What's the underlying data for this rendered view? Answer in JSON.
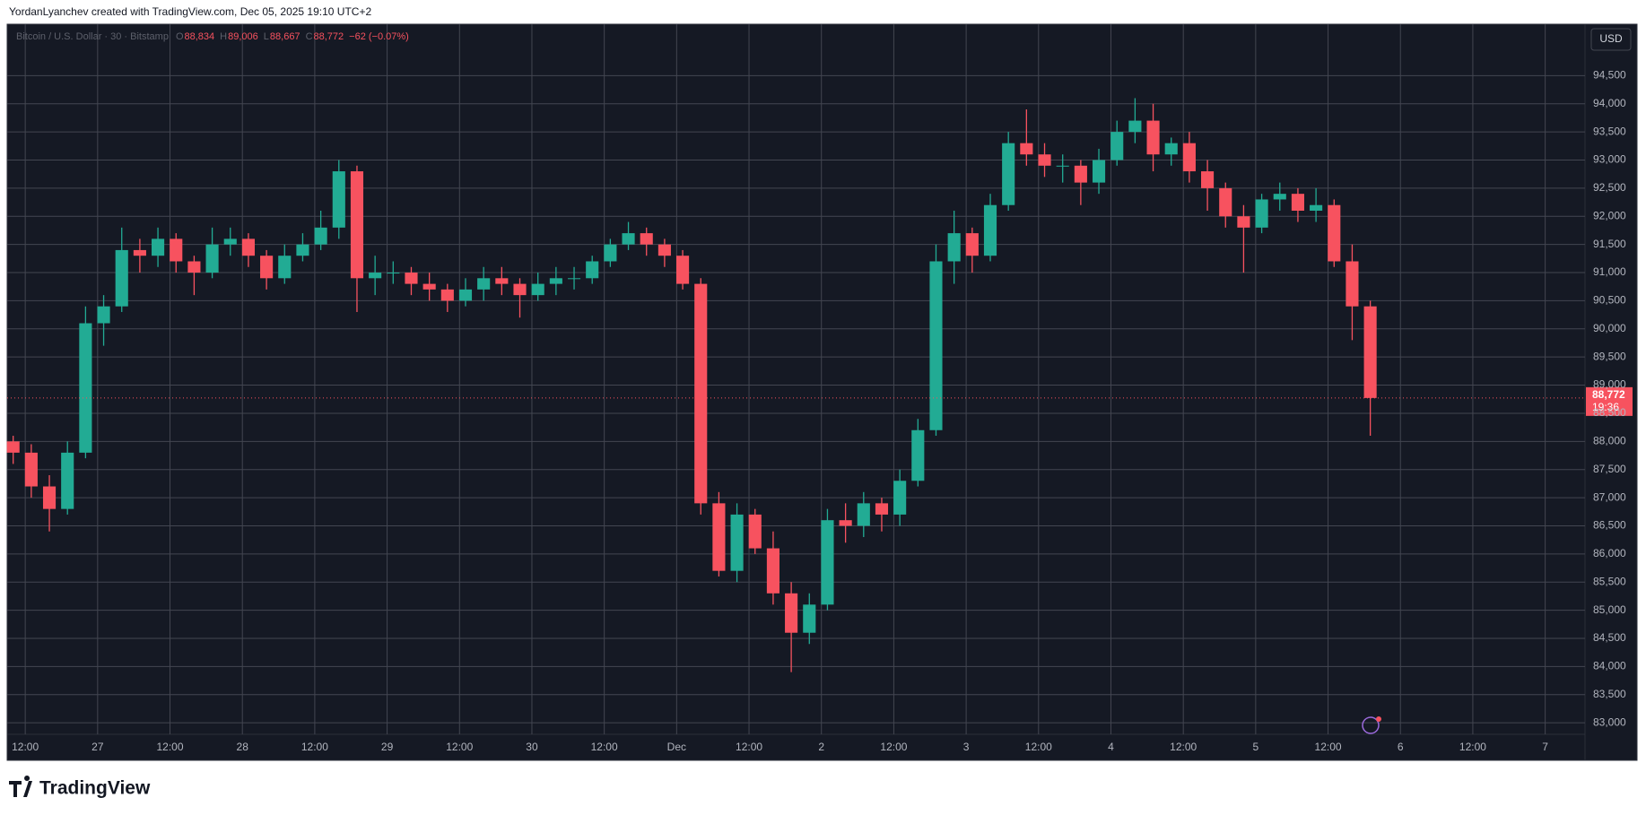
{
  "page": {
    "caption": "YordanLyanchev created with TradingView.com, Dec 05, 2025 19:10 UTC+2",
    "brand": "TradingView"
  },
  "chart_data": {
    "type": "candlestick",
    "symbol": "Bitcoin / U.S. Dollar · 30 · Bitstamp",
    "ohlc_legend": [
      {
        "key": "O",
        "value": "88,834"
      },
      {
        "key": "H",
        "value": "89,006"
      },
      {
        "key": "L",
        "value": "88,667"
      },
      {
        "key": "C",
        "value": "88,772"
      }
    ],
    "change": "−62 (−0.07%)",
    "currency": "USD",
    "last_price": {
      "value": 88772,
      "label": "88,772"
    },
    "countdown": "19:36",
    "up_color": "#22ab94",
    "down_color": "#f7525f",
    "grid": true,
    "x": [
      10,
      13,
      16,
      19,
      22,
      25,
      28,
      31,
      34,
      37,
      40,
      43,
      46,
      49,
      52,
      55,
      58,
      61,
      64,
      67,
      70,
      73,
      76,
      79,
      82,
      85,
      88,
      91,
      94,
      97,
      100,
      103,
      106,
      109,
      112,
      115,
      118,
      121,
      124,
      127,
      130,
      133,
      136,
      139,
      142,
      145,
      148,
      151,
      154,
      157,
      160,
      163,
      166,
      169,
      172,
      175,
      178,
      181,
      184,
      187,
      190,
      193,
      196,
      199,
      202,
      205,
      208,
      211,
      214,
      217,
      220,
      223,
      226,
      229,
      232,
      235
    ],
    "open": [
      88000,
      87800,
      87200,
      86800,
      87800,
      90100,
      90400,
      91400,
      91300,
      91600,
      91200,
      91000,
      91500,
      91600,
      91300,
      90900,
      91300,
      91500,
      91800,
      92800,
      90900,
      91000,
      91000,
      90800,
      90700,
      90500,
      90700,
      90900,
      90800,
      90600,
      90800,
      90900,
      90900,
      91200,
      91500,
      91700,
      91500,
      91300,
      90800,
      86900,
      85700,
      86700,
      86100,
      85300,
      84600,
      85100,
      86600,
      86500,
      86900,
      86700,
      87300,
      88200,
      91200,
      91700,
      91300,
      92200,
      93300,
      93100,
      92900,
      92900,
      92600,
      93000,
      93500,
      93700,
      93100,
      93300,
      92800,
      92500,
      92000,
      91800,
      92300,
      92400,
      92100,
      92200,
      91200,
      90400
    ],
    "high": [
      88100,
      87950,
      87400,
      88000,
      90400,
      90600,
      91800,
      91600,
      91800,
      91700,
      91300,
      91800,
      91800,
      91700,
      91400,
      91500,
      91700,
      92100,
      93000,
      92900,
      91300,
      91200,
      91100,
      91000,
      90800,
      90900,
      91100,
      91100,
      90900,
      91000,
      91100,
      91100,
      91300,
      91600,
      91900,
      91800,
      91600,
      91400,
      90900,
      87100,
      86900,
      86800,
      86400,
      85500,
      85300,
      86800,
      86900,
      87100,
      87000,
      87500,
      88400,
      91500,
      92100,
      91800,
      92400,
      93500,
      93900,
      93300,
      93100,
      93000,
      93200,
      93700,
      94100,
      94000,
      93400,
      93500,
      93000,
      92600,
      92200,
      92400,
      92600,
      92500,
      92500,
      92300,
      91500,
      90500
    ],
    "low": [
      87600,
      87000,
      86400,
      86700,
      87700,
      89700,
      90300,
      91000,
      91100,
      91000,
      90600,
      90900,
      91300,
      91100,
      90700,
      90800,
      91200,
      91400,
      91600,
      90300,
      90600,
      90800,
      90600,
      90500,
      90300,
      90400,
      90500,
      90600,
      90200,
      90500,
      90600,
      90700,
      90800,
      91100,
      91400,
      91300,
      91100,
      90700,
      86700,
      85600,
      85500,
      86000,
      85100,
      83900,
      84400,
      85000,
      86200,
      86300,
      86400,
      86500,
      87200,
      88100,
      90800,
      91000,
      91200,
      92100,
      92900,
      92700,
      92600,
      92200,
      92400,
      92900,
      93300,
      92800,
      92900,
      92600,
      92100,
      91800,
      91000,
      91700,
      92100,
      91900,
      91900,
      91100,
      89800,
      88100
    ],
    "close": [
      87800,
      87200,
      86800,
      87800,
      90100,
      90400,
      91400,
      91300,
      91600,
      91200,
      91000,
      91500,
      91600,
      91300,
      90900,
      91300,
      91500,
      91800,
      92800,
      90900,
      91000,
      91000,
      90800,
      90700,
      90500,
      90700,
      90900,
      90800,
      90600,
      90800,
      90900,
      90900,
      91200,
      91500,
      91700,
      91500,
      91300,
      90800,
      86900,
      85700,
      86700,
      86100,
      85300,
      84600,
      85100,
      86600,
      86500,
      86900,
      86700,
      87300,
      88200,
      91200,
      91700,
      91300,
      92200,
      93300,
      93100,
      92900,
      92900,
      92600,
      93000,
      93500,
      93700,
      93100,
      93300,
      92800,
      92500,
      92000,
      91800,
      92300,
      92400,
      92100,
      92200,
      91200,
      90400,
      88772
    ],
    "xlim": [
      9.6,
      270.6
    ],
    "xticks": [
      {
        "value": 12,
        "label": "12:00"
      },
      {
        "value": 24,
        "label": "27"
      },
      {
        "value": 36,
        "label": "12:00"
      },
      {
        "value": 48,
        "label": "28"
      },
      {
        "value": 60,
        "label": "12:00"
      },
      {
        "value": 72,
        "label": "29"
      },
      {
        "value": 84,
        "label": "12:00"
      },
      {
        "value": 96,
        "label": "30"
      },
      {
        "value": 108,
        "label": "12:00"
      },
      {
        "value": 120,
        "label": "Dec"
      },
      {
        "value": 132,
        "label": "12:00"
      },
      {
        "value": 144,
        "label": "2"
      },
      {
        "value": 156,
        "label": "12:00"
      },
      {
        "value": 168,
        "label": "3"
      },
      {
        "value": 180,
        "label": "12:00"
      },
      {
        "value": 192,
        "label": "4"
      },
      {
        "value": 204,
        "label": "12:00"
      },
      {
        "value": 216,
        "label": "5"
      },
      {
        "value": 228,
        "label": "12:00"
      },
      {
        "value": 240,
        "label": "6"
      },
      {
        "value": 252,
        "label": "12:00"
      },
      {
        "value": 264,
        "label": "7"
      }
    ],
    "ylim": [
      82795,
      95414
    ],
    "yticks": [
      {
        "value": 83000,
        "label": "83,000"
      },
      {
        "value": 83500,
        "label": "83,500"
      },
      {
        "value": 84000,
        "label": "84,000"
      },
      {
        "value": 84500,
        "label": "84,500"
      },
      {
        "value": 85000,
        "label": "85,000"
      },
      {
        "value": 85500,
        "label": "85,500"
      },
      {
        "value": 86000,
        "label": "86,000"
      },
      {
        "value": 86500,
        "label": "86,500"
      },
      {
        "value": 87000,
        "label": "87,000"
      },
      {
        "value": 87500,
        "label": "87,500"
      },
      {
        "value": 88000,
        "label": "88,000"
      },
      {
        "value": 88500,
        "label": "88,500"
      },
      {
        "value": 89000,
        "label": "89,000"
      },
      {
        "value": 89500,
        "label": "89,500"
      },
      {
        "value": 90000,
        "label": "90,000"
      },
      {
        "value": 90500,
        "label": "90,500"
      },
      {
        "value": 91000,
        "label": "91,000"
      },
      {
        "value": 91500,
        "label": "91,500"
      },
      {
        "value": 92000,
        "label": "92,000"
      },
      {
        "value": 92500,
        "label": "92,500"
      },
      {
        "value": 93000,
        "label": "93,000"
      },
      {
        "value": 93500,
        "label": "93,500"
      },
      {
        "value": 94000,
        "label": "94,000"
      },
      {
        "value": 94500,
        "label": "94,500"
      }
    ]
  }
}
